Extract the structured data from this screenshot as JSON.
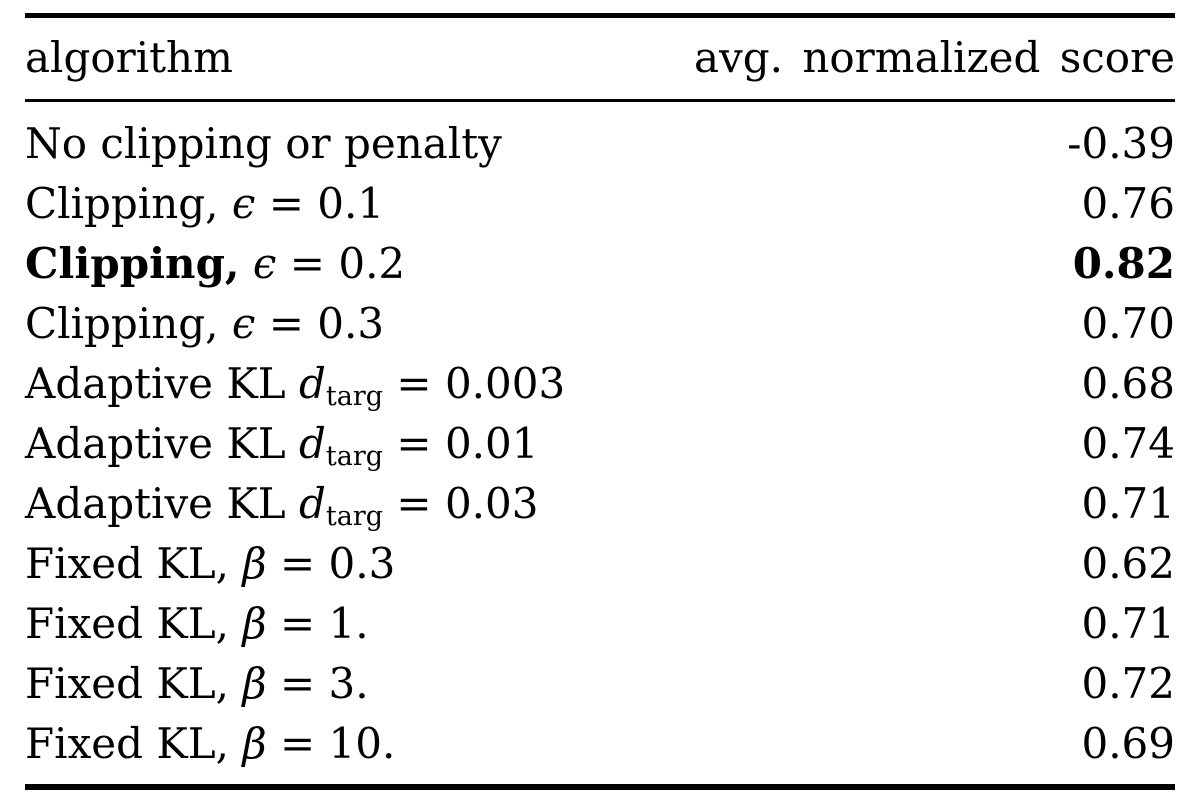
{
  "page": {
    "background_color": "#ffffff",
    "text_color": "#000000"
  },
  "table": {
    "columns": [
      {
        "label": "algorithm",
        "align": "left"
      },
      {
        "label": "avg. normalized score",
        "align": "right"
      }
    ],
    "rows": [
      {
        "text": "No clipping or penalty",
        "var": "",
        "sub": "",
        "eq": "",
        "score": "-0.39",
        "bold": false
      },
      {
        "text": "Clipping,",
        "var": "ϵ",
        "sub": "",
        "eq": "= 0.1",
        "score": "0.76",
        "bold": false
      },
      {
        "text": "Clipping,",
        "var": "ϵ",
        "sub": "",
        "eq": "= 0.2",
        "score": "0.82",
        "bold": true
      },
      {
        "text": "Clipping,",
        "var": "ϵ",
        "sub": "",
        "eq": "= 0.3",
        "score": "0.70",
        "bold": false
      },
      {
        "text": "Adaptive KL",
        "var": "d",
        "sub": "targ",
        "eq": "= 0.003",
        "score": "0.68",
        "bold": false
      },
      {
        "text": "Adaptive KL",
        "var": "d",
        "sub": "targ",
        "eq": "= 0.01",
        "score": "0.74",
        "bold": false
      },
      {
        "text": "Adaptive KL",
        "var": "d",
        "sub": "targ",
        "eq": "= 0.03",
        "score": "0.71",
        "bold": false
      },
      {
        "text": "Fixed KL,",
        "var": "β",
        "sub": "",
        "eq": "= 0.3",
        "score": "0.62",
        "bold": false
      },
      {
        "text": "Fixed KL,",
        "var": "β",
        "sub": "",
        "eq": "= 1.",
        "score": "0.71",
        "bold": false
      },
      {
        "text": "Fixed KL,",
        "var": "β",
        "sub": "",
        "eq": "= 3.",
        "score": "0.72",
        "bold": false
      },
      {
        "text": "Fixed KL,",
        "var": "β",
        "sub": "",
        "eq": "= 10.",
        "score": "0.69",
        "bold": false
      }
    ]
  },
  "chart_data": {
    "type": "table",
    "title": "",
    "columns": [
      "algorithm",
      "avg. normalized score"
    ],
    "rows": [
      {
        "algorithm": "No clipping or penalty",
        "avg_normalized_score": -0.39
      },
      {
        "algorithm": "Clipping, ϵ = 0.1",
        "avg_normalized_score": 0.76
      },
      {
        "algorithm": "Clipping, ϵ = 0.2",
        "avg_normalized_score": 0.82
      },
      {
        "algorithm": "Clipping, ϵ = 0.3",
        "avg_normalized_score": 0.7
      },
      {
        "algorithm": "Adaptive KL d_targ = 0.003",
        "avg_normalized_score": 0.68
      },
      {
        "algorithm": "Adaptive KL d_targ = 0.01",
        "avg_normalized_score": 0.74
      },
      {
        "algorithm": "Adaptive KL d_targ = 0.03",
        "avg_normalized_score": 0.71
      },
      {
        "algorithm": "Fixed KL, β = 0.3",
        "avg_normalized_score": 0.62
      },
      {
        "algorithm": "Fixed KL, β = 1.",
        "avg_normalized_score": 0.71
      },
      {
        "algorithm": "Fixed KL, β = 3.",
        "avg_normalized_score": 0.72
      },
      {
        "algorithm": "Fixed KL, β = 10.",
        "avg_normalized_score": 0.69
      }
    ],
    "highlighted_row": "Clipping, ϵ = 0.2"
  }
}
